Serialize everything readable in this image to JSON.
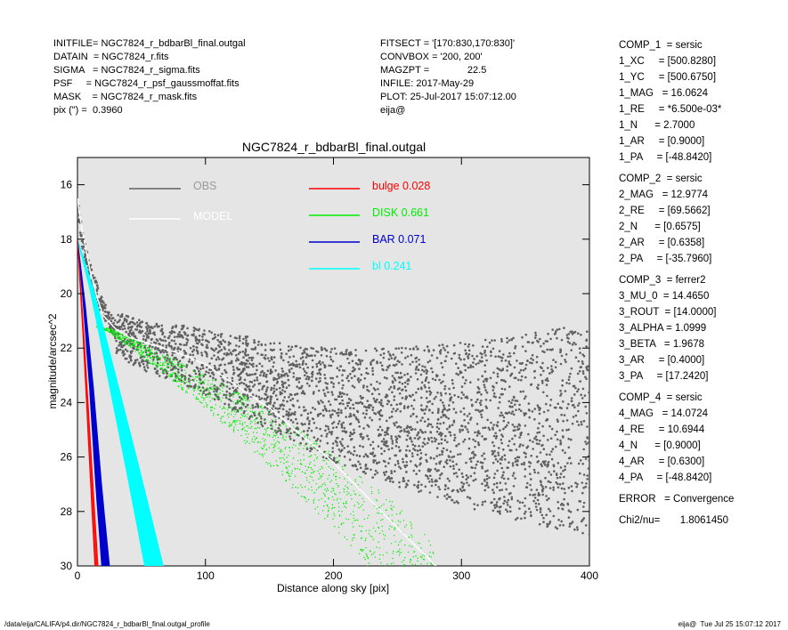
{
  "header_left": [
    "INITFILE= NGC7824_r_bdbarBl_final.outgal",
    "DATAIN  = NGC7824_r.fits",
    "SIGMA   = NGC7824_r_sigma.fits",
    "PSF     = NGC7824_r_psf_gaussmoffat.fits",
    "MASK    = NGC7824_r_mask.fits",
    "pix (\") =  0.3960"
  ],
  "header_mid": [
    "FITSECT = '[170:830,170:830]'",
    "CONVBOX = '200, 200'",
    "MAGZPT =              22.5",
    "INFILE: 2017-May-29",
    "PLOT: 25-Jul-2017 15:07:12.00",
    "eija@"
  ],
  "params": [
    [
      "COMP_1  = sersic",
      "1_XC     = [500.8280]",
      "1_YC     = [500.6750]",
      "1_MAG   = 16.0624",
      "1_RE     = *6.500e-03*",
      "1_N      = 2.7000",
      "1_AR     = [0.9000]",
      "1_PA     = [-48.8420]"
    ],
    [
      "COMP_2  = sersic",
      "2_MAG   = 12.9774",
      "2_RE     = [69.5662]",
      "2_N      = [0.6575]",
      "2_AR     = [0.6358]",
      "2_PA     = [-35.7960]"
    ],
    [
      "COMP_3  = ferrer2",
      "3_MU_0  = 14.4650",
      "3_ROUT  = [14.0000]",
      "3_ALPHA = 1.0999",
      "3_BETA   = 1.9678",
      "3_AR     = [0.4000]",
      "3_PA     = [17.2420]"
    ],
    [
      "COMP_4  = sersic",
      "4_MAG   = 14.0724",
      "4_RE     = 10.6944",
      "4_N      = [0.9000]",
      "4_AR     = [0.6300]",
      "4_PA     = [-48.8420]"
    ],
    [
      "ERROR   = Convergence"
    ],
    [
      "Chi2/nu=       1.8061450"
    ]
  ],
  "footer_left": "/data/eija/CALIFA/p4.dir/NGC7824_r_bdbarBl_final.outgal_profile",
  "footer_right": "eija@  Tue Jul 25 15:07:12 2017",
  "chart_data": {
    "type": "scatter",
    "title": "NGC7824_r_bdbarBl_final.outgal",
    "xlabel": "Distance along sky [pix]",
    "ylabel": "magnitude/arcsec^2",
    "xlim": [
      0,
      400
    ],
    "ylim": [
      30,
      15
    ],
    "y_inverted": true,
    "grid": false,
    "legend_placement": "top",
    "background": "#e5e5e5",
    "x_ticks": [
      0,
      100,
      200,
      300,
      400
    ],
    "y_ticks": [
      16,
      18,
      20,
      22,
      24,
      26,
      28,
      30
    ],
    "series": [
      {
        "name": "OBS",
        "label_value": "",
        "color": "#606060",
        "style": "dense points",
        "x": [
          0,
          2,
          5,
          10,
          15,
          20,
          25,
          30,
          40,
          50,
          60,
          80,
          100,
          125,
          150,
          175,
          200,
          250,
          300,
          350,
          400
        ],
        "y": [
          16.6,
          17.4,
          18.3,
          19.2,
          19.9,
          20.5,
          21.0,
          21.3,
          21.6,
          21.8,
          21.9,
          22.1,
          22.4,
          22.8,
          23.2,
          23.6,
          23.9,
          24.3,
          24.5,
          24.6,
          24.6
        ]
      },
      {
        "name": "MODEL",
        "label_value": "",
        "color": "#ffffff",
        "style": "line",
        "x": [
          0,
          2,
          5,
          10,
          15,
          20,
          30,
          40,
          60,
          80,
          100,
          150,
          200,
          250,
          280
        ],
        "y": [
          16.5,
          17.2,
          18.0,
          19.2,
          20.1,
          20.8,
          21.3,
          21.6,
          21.9,
          22.2,
          22.6,
          24.2,
          26.2,
          28.6,
          30.0
        ]
      },
      {
        "name": "bulge",
        "label_value": "0.028",
        "color": "#ff0000",
        "style": "band",
        "x": [
          0,
          5,
          10,
          14
        ],
        "y": [
          18.0,
          22.0,
          26.5,
          30.0
        ]
      },
      {
        "name": "DISK",
        "label_value": "0.661",
        "color": "#00ee00",
        "style": "band",
        "x": [
          0,
          25,
          50,
          100,
          150,
          200,
          250,
          280
        ],
        "y": [
          21.1,
          21.3,
          21.9,
          23.2,
          24.7,
          26.4,
          28.5,
          30.0
        ]
      },
      {
        "name": "BAR",
        "label_value": "0.071",
        "color": "#0000cc",
        "style": "band",
        "x": [
          0,
          5,
          10,
          15,
          20
        ],
        "y": [
          18.0,
          20.5,
          23.5,
          27.0,
          30.0
        ]
      },
      {
        "name": "bl",
        "label_value": "0.241",
        "color": "#00ffff",
        "style": "band",
        "x": [
          0,
          10,
          20,
          40,
          55
        ],
        "y": [
          18.0,
          19.8,
          22.0,
          26.5,
          30.0
        ]
      }
    ]
  }
}
